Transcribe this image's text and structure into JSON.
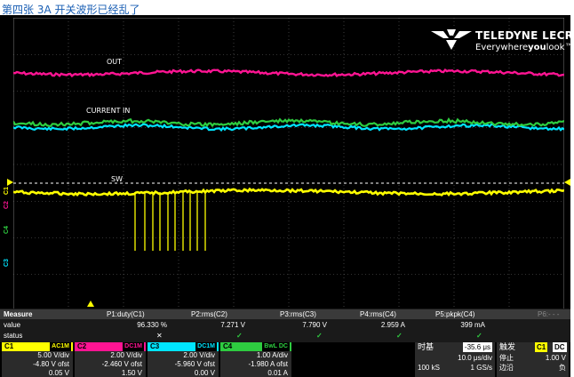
{
  "page": {
    "title": "第四张 3A 开关波形已经乱了"
  },
  "brand": {
    "name": "TELEDYNE LECROY",
    "tagline_pre": "Everywhere",
    "tagline_bold": "you",
    "tagline_post": "look™"
  },
  "traces": {
    "out_label": "OUT",
    "current_label": "CURRENT IN",
    "sw_label": "SW",
    "c1_marker": "C1",
    "markers": [
      "C1",
      "C2",
      "C4",
      "C3"
    ]
  },
  "measure": {
    "title": "Measure",
    "row_value_label": "value",
    "row_status_label": "status",
    "params": [
      {
        "name": "P1:duty(C1)",
        "value": "96.330 %",
        "status": "✕"
      },
      {
        "name": "P2:rms(C2)",
        "value": "7.271 V",
        "status": "✓"
      },
      {
        "name": "P3:rms(C3)",
        "value": "7.790 V",
        "status": "✓"
      },
      {
        "name": "P4:rms(C4)",
        "value": "2.959 A",
        "status": "✓"
      },
      {
        "name": "P5:pkpk(C4)",
        "value": "399 mA",
        "status": "✓"
      },
      {
        "name": "P6:- - -",
        "value": "",
        "status": ""
      }
    ]
  },
  "channels": [
    {
      "id": "C1",
      "coupling": "AC1M",
      "vdiv": "5.00 V/div",
      "offset": "-4.80 V ofst",
      "extra": "0.05 V",
      "color": "#ffff00"
    },
    {
      "id": "C2",
      "coupling": "DC1M",
      "vdiv": "2.00 V/div",
      "offset": "-2.460 V ofst",
      "extra": "1.50 V",
      "color": "#ff1493"
    },
    {
      "id": "C3",
      "coupling": "DC1M",
      "vdiv": "2.00 V/div",
      "offset": "-5.960 V ofst",
      "extra": "0.00 V",
      "color": "#00e5ff"
    },
    {
      "id": "C4",
      "coupling": "BwL DC",
      "vdiv": "1.00 A/div",
      "offset": "-1.980 A ofst",
      "extra": "0.01 A",
      "color": "#2ecc40"
    }
  ],
  "timebase": {
    "label": "时基",
    "delay": "-35.6 μs",
    "tdiv": "10.0 μs/div",
    "samples": "100 kS",
    "rate": "1 GS/s"
  },
  "trigger": {
    "label": "触发",
    "source": "C1",
    "coupling": "DC",
    "mode": "停止",
    "level": "1.00 V",
    "edge": "边沿",
    "slope": "负"
  }
}
